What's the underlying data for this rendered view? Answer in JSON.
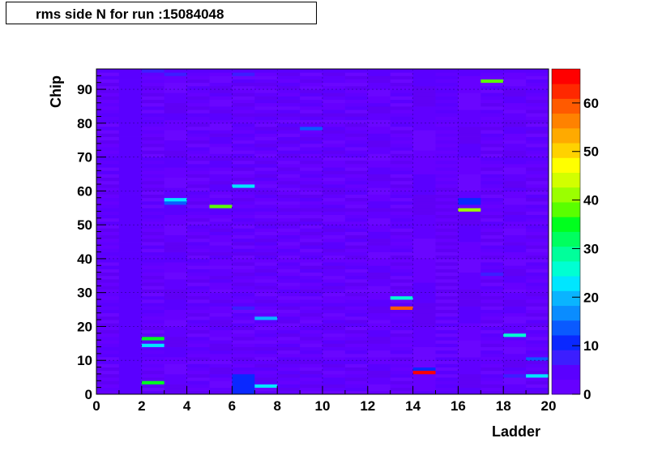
{
  "title": "rms side N for run :15084048",
  "chart_data": {
    "type": "heatmap",
    "title": "rms side N for run :15084048",
    "xlabel": "Ladder",
    "ylabel": "Chip",
    "xlim": [
      0,
      20
    ],
    "ylim": [
      0,
      96
    ],
    "x_ticks": [
      "0",
      "2",
      "4",
      "6",
      "8",
      "10",
      "12",
      "14",
      "16",
      "18",
      "20"
    ],
    "y_ticks": [
      "0",
      "10",
      "20",
      "30",
      "40",
      "50",
      "60",
      "70",
      "80",
      "90"
    ],
    "z_range": [
      0,
      67
    ],
    "z_ticks": [
      "0",
      "10",
      "20",
      "30",
      "40",
      "50",
      "60"
    ],
    "colorscale": [
      "#6600ff",
      "#5a00ff",
      "#3c1eff",
      "#0a28ff",
      "#0a5aff",
      "#0a8cff",
      "#0ab4ff",
      "#00e6ff",
      "#00ffd2",
      "#00ff9b",
      "#00ff5f",
      "#00ff1e",
      "#5aff00",
      "#9bff00",
      "#d2ff00",
      "#ffff00",
      "#ffd200",
      "#ffaa00",
      "#ff8200",
      "#ff5a00",
      "#ff2800",
      "#ff0000"
    ],
    "base_value": 2,
    "highlights": [
      {
        "ladder": 2,
        "chip": 3,
        "value": 34
      },
      {
        "ladder": 2,
        "chip": 14,
        "value": 22
      },
      {
        "ladder": 2,
        "chip": 16,
        "value": 36
      },
      {
        "ladder": 3,
        "chip": 56,
        "value": 15
      },
      {
        "ladder": 3,
        "chip": 57,
        "value": 22
      },
      {
        "ladder": 5,
        "chip": 55,
        "value": 38
      },
      {
        "ladder": 6,
        "chip": 0,
        "value": 12
      },
      {
        "ladder": 6,
        "chip": 1,
        "value": 12
      },
      {
        "ladder": 6,
        "chip": 2,
        "value": 12
      },
      {
        "ladder": 6,
        "chip": 3,
        "value": 12
      },
      {
        "ladder": 6,
        "chip": 4,
        "value": 12
      },
      {
        "ladder": 6,
        "chip": 5,
        "value": 12
      },
      {
        "ladder": 6,
        "chip": 25,
        "value": 9
      },
      {
        "ladder": 6,
        "chip": 61,
        "value": 22
      },
      {
        "ladder": 7,
        "chip": 2,
        "value": 22
      },
      {
        "ladder": 7,
        "chip": 22,
        "value": 20
      },
      {
        "ladder": 9,
        "chip": 78,
        "value": 14
      },
      {
        "ladder": 13,
        "chip": 25,
        "value": 59
      },
      {
        "ladder": 13,
        "chip": 28,
        "value": 27
      },
      {
        "ladder": 14,
        "chip": 6,
        "value": 67
      },
      {
        "ladder": 14,
        "chip": 7,
        "value": 12
      },
      {
        "ladder": 16,
        "chip": 54,
        "value": 42
      },
      {
        "ladder": 16,
        "chip": 56,
        "value": 10
      },
      {
        "ladder": 16,
        "chip": 57,
        "value": 10
      },
      {
        "ladder": 17,
        "chip": 35,
        "value": 8
      },
      {
        "ladder": 17,
        "chip": 92,
        "value": 38
      },
      {
        "ladder": 18,
        "chip": 17,
        "value": 27
      },
      {
        "ladder": 18,
        "chip": 5,
        "value": 7
      },
      {
        "ladder": 19,
        "chip": 5,
        "value": 24
      },
      {
        "ladder": 19,
        "chip": 10,
        "value": 15
      },
      {
        "ladder": 2,
        "chip": 95,
        "value": 7
      },
      {
        "ladder": 3,
        "chip": 94,
        "value": 8
      },
      {
        "ladder": 6,
        "chip": 94,
        "value": 7
      }
    ]
  }
}
